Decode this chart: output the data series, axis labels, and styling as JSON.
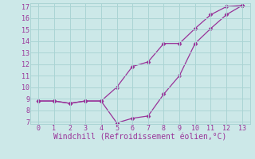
{
  "line1_x": [
    0,
    1,
    2,
    3,
    4,
    5,
    6,
    7,
    8,
    9,
    10,
    11,
    12,
    13
  ],
  "line1_y": [
    8.8,
    8.8,
    8.6,
    8.8,
    8.8,
    10.0,
    11.8,
    12.2,
    13.8,
    13.8,
    15.1,
    16.3,
    17.0,
    17.1
  ],
  "line2_x": [
    0,
    1,
    2,
    3,
    4,
    5,
    6,
    7,
    8,
    9,
    10,
    11,
    12,
    13
  ],
  "line2_y": [
    8.8,
    8.8,
    8.6,
    8.8,
    8.8,
    6.9,
    7.3,
    7.5,
    9.4,
    11.0,
    13.8,
    15.1,
    16.3,
    17.1
  ],
  "line_color": "#993399",
  "bg_color": "#cce8e8",
  "grid_color": "#aad4d4",
  "xlabel": "Windchill (Refroidissement éolien,°C)",
  "xlim": [
    -0.5,
    13.5
  ],
  "ylim": [
    6.8,
    17.3
  ],
  "yticks": [
    7,
    8,
    9,
    10,
    11,
    12,
    13,
    14,
    15,
    16,
    17
  ],
  "xticks": [
    0,
    1,
    2,
    3,
    4,
    5,
    6,
    7,
    8,
    9,
    10,
    11,
    12,
    13
  ],
  "marker": "D",
  "markersize": 2.5,
  "linewidth": 0.9,
  "xlabel_fontsize": 7,
  "tick_fontsize": 6,
  "xlabel_color": "#993399",
  "tick_color": "#993399"
}
